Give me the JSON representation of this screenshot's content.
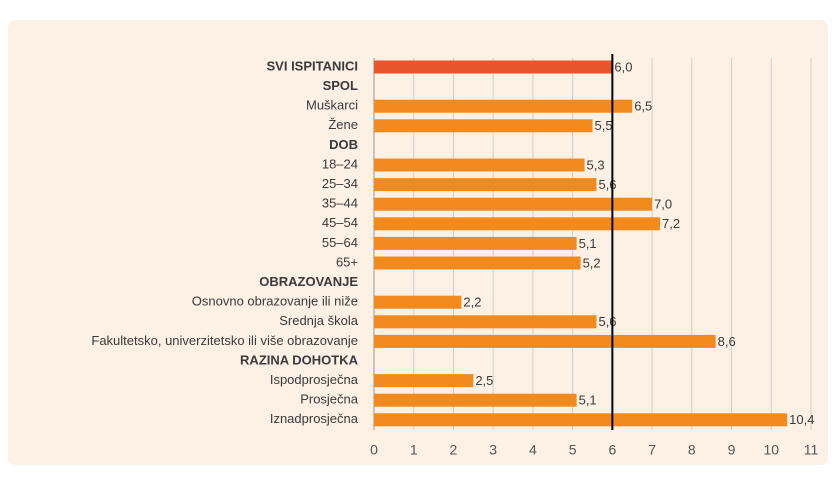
{
  "chart_data": {
    "type": "hbar",
    "categories": [
      "SVI ISPITANICI",
      "SPOL",
      "Muškarci",
      "Žene",
      "DOB",
      "18–24",
      "25–34",
      "35–44",
      "45–54",
      "55–64",
      "65+",
      "OBRAZOVANJE",
      "Osnovno obrazovanje ili niže",
      "Srednja škola",
      "Fakultetsko, univerzitetsko ili više obrazovanje",
      "RAZINA DOHOTKA",
      "Ispodprosječna",
      "Prosječna",
      "Iznadprosječna"
    ],
    "values": [
      6.0,
      null,
      6.5,
      5.5,
      null,
      5.3,
      5.6,
      7.0,
      7.2,
      5.1,
      5.2,
      null,
      2.2,
      5.6,
      8.6,
      null,
      2.5,
      5.1,
      10.4
    ],
    "value_labels": [
      "6,0",
      null,
      "6,5",
      "5,5",
      null,
      "5,3",
      "5,6",
      "7,0",
      "7,2",
      "5,1",
      "5,2",
      null,
      "2,2",
      "5,6",
      "8,6",
      null,
      "2,5",
      "5,1",
      "10,4"
    ],
    "colors": [
      "#e8552a",
      null,
      "#f28a1e",
      "#f28a1e",
      null,
      "#f28a1e",
      "#f28a1e",
      "#f28a1e",
      "#f28a1e",
      "#f28a1e",
      "#f28a1e",
      null,
      "#f28a1e",
      "#f28a1e",
      "#f28a1e",
      null,
      "#f28a1e",
      "#f28a1e",
      "#f28a1e"
    ],
    "bold": [
      true,
      true,
      false,
      false,
      true,
      false,
      false,
      false,
      false,
      false,
      false,
      true,
      false,
      false,
      false,
      true,
      false,
      false,
      false
    ],
    "xlim": [
      0,
      11
    ],
    "xticks": [
      0,
      1,
      2,
      3,
      4,
      5,
      6,
      7,
      8,
      9,
      10,
      11
    ],
    "reference_line": 6,
    "grid": true
  }
}
